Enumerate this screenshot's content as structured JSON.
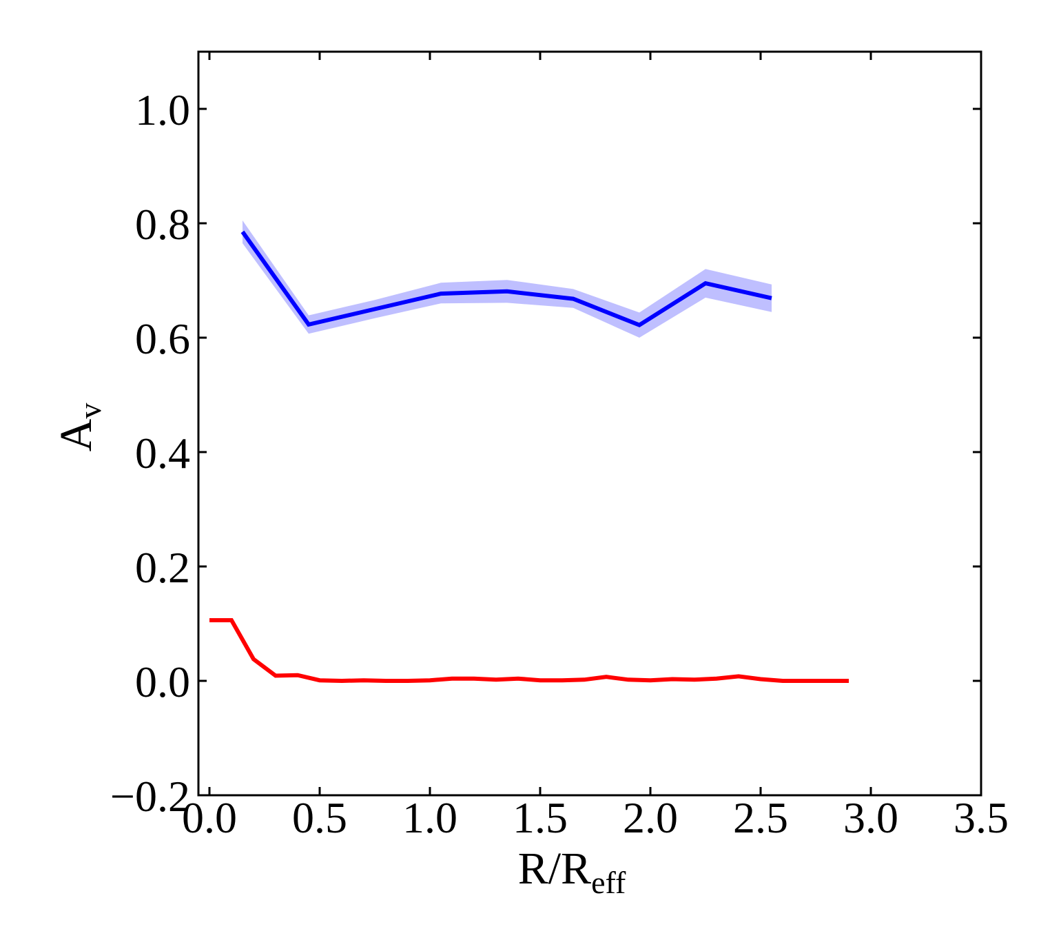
{
  "chart_data": {
    "type": "line",
    "xlabel": "R/R",
    "xlabel_sub": "eff",
    "ylabel": "A",
    "ylabel_sub": "v",
    "xlim": [
      -0.05,
      3.5
    ],
    "ylim": [
      -0.2,
      1.1
    ],
    "xticks": [
      0.0,
      0.5,
      1.0,
      1.5,
      2.0,
      2.5,
      3.0,
      3.5
    ],
    "xtick_labels": [
      "0.0",
      "0.5",
      "1.0",
      "1.5",
      "2.0",
      "2.5",
      "3.0",
      "3.5"
    ],
    "yticks": [
      -0.2,
      0.0,
      0.2,
      0.4,
      0.6,
      0.8,
      1.0
    ],
    "ytick_labels": [
      "−0.2",
      "0.0",
      "0.2",
      "0.4",
      "0.6",
      "0.8",
      "1.0"
    ],
    "grid": false,
    "series": [
      {
        "color": "#0000ff",
        "band_color": "#aaaaff",
        "x": [
          0.15,
          0.45,
          0.75,
          1.05,
          1.35,
          1.65,
          1.95,
          2.25,
          2.55
        ],
        "y": [
          0.785,
          0.623,
          0.65,
          0.677,
          0.681,
          0.668,
          0.622,
          0.695,
          0.669
        ],
        "y_lower": [
          0.765,
          0.607,
          0.634,
          0.66,
          0.661,
          0.652,
          0.6,
          0.67,
          0.645
        ],
        "y_upper": [
          0.805,
          0.639,
          0.666,
          0.696,
          0.701,
          0.685,
          0.644,
          0.72,
          0.693
        ]
      },
      {
        "color": "#ff0000",
        "x": [
          0.0,
          0.1,
          0.2,
          0.3,
          0.4,
          0.5,
          0.6,
          0.7,
          0.8,
          0.9,
          1.0,
          1.1,
          1.2,
          1.3,
          1.4,
          1.5,
          1.6,
          1.7,
          1.8,
          1.9,
          2.0,
          2.1,
          2.2,
          2.3,
          2.4,
          2.5,
          2.6,
          2.7,
          2.8,
          2.9
        ],
        "y": [
          0.106,
          0.106,
          0.038,
          0.009,
          0.01,
          0.001,
          0.0,
          0.001,
          0.0,
          0.0,
          0.001,
          0.004,
          0.004,
          0.002,
          0.004,
          0.001,
          0.001,
          0.002,
          0.007,
          0.002,
          0.001,
          0.003,
          0.002,
          0.004,
          0.008,
          0.003,
          0.0,
          0.0,
          0.0,
          0.0
        ]
      }
    ]
  }
}
